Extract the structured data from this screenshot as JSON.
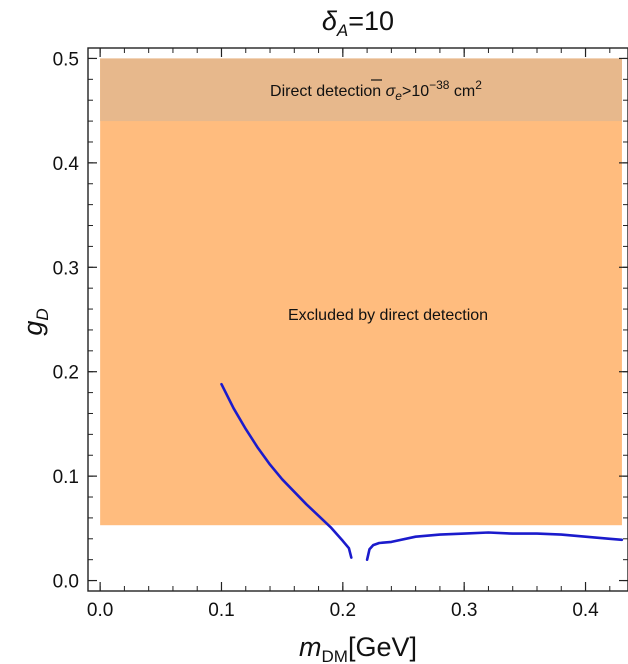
{
  "chart_data": {
    "type": "line",
    "title": {
      "var": "δ",
      "sub": "A",
      "rest": "=10"
    },
    "xlabel": {
      "var": "m",
      "sub": "DM",
      "rest": "[GeV]"
    },
    "ylabel": {
      "var": "g",
      "sub": "D"
    },
    "xlim": [
      -0.01,
      0.435
    ],
    "ylim": [
      -0.01,
      0.51
    ],
    "xticks": [
      0.0,
      0.1,
      0.2,
      0.3,
      0.4
    ],
    "xtick_labels": [
      "0.0",
      "0.1",
      "0.2",
      "0.3",
      "0.4"
    ],
    "yticks": [
      0.0,
      0.1,
      0.2,
      0.3,
      0.4,
      0.5
    ],
    "ytick_labels": [
      "0.0",
      "0.1",
      "0.2",
      "0.3",
      "0.4",
      "0.5"
    ],
    "grid": false,
    "regions": [
      {
        "label": "Excluded by direct detection",
        "x": [
          0.0,
          0.43
        ],
        "y": [
          0.053,
          0.5
        ],
        "color": "#ffbc7e"
      },
      {
        "label": {
          "pre": "Direct detection ",
          "var": "σ",
          "sub": "e",
          "mid": ">10",
          "sup": "−38",
          "post": " cm",
          "sup2": "2"
        },
        "x": [
          0.0,
          0.43
        ],
        "y": [
          0.44,
          0.5
        ],
        "color": "#e7b88c"
      }
    ],
    "series": [
      {
        "color": "#1b1bcc",
        "segments": [
          {
            "x": [
              0.1,
              0.11,
              0.12,
              0.13,
              0.14,
              0.15,
              0.16,
              0.17,
              0.18,
              0.19,
              0.2,
              0.205,
              0.207
            ],
            "y": [
              0.188,
              0.165,
              0.145,
              0.127,
              0.111,
              0.097,
              0.085,
              0.073,
              0.062,
              0.051,
              0.038,
              0.031,
              0.022
            ]
          },
          {
            "x": [
              0.22,
              0.222,
              0.225,
              0.23,
              0.24,
              0.26,
              0.28,
              0.3,
              0.32,
              0.34,
              0.36,
              0.38,
              0.4,
              0.42,
              0.43
            ],
            "y": [
              0.02,
              0.03,
              0.034,
              0.036,
              0.037,
              0.042,
              0.044,
              0.045,
              0.046,
              0.045,
              0.045,
              0.044,
              0.042,
              0.04,
              0.039
            ]
          }
        ]
      }
    ]
  }
}
